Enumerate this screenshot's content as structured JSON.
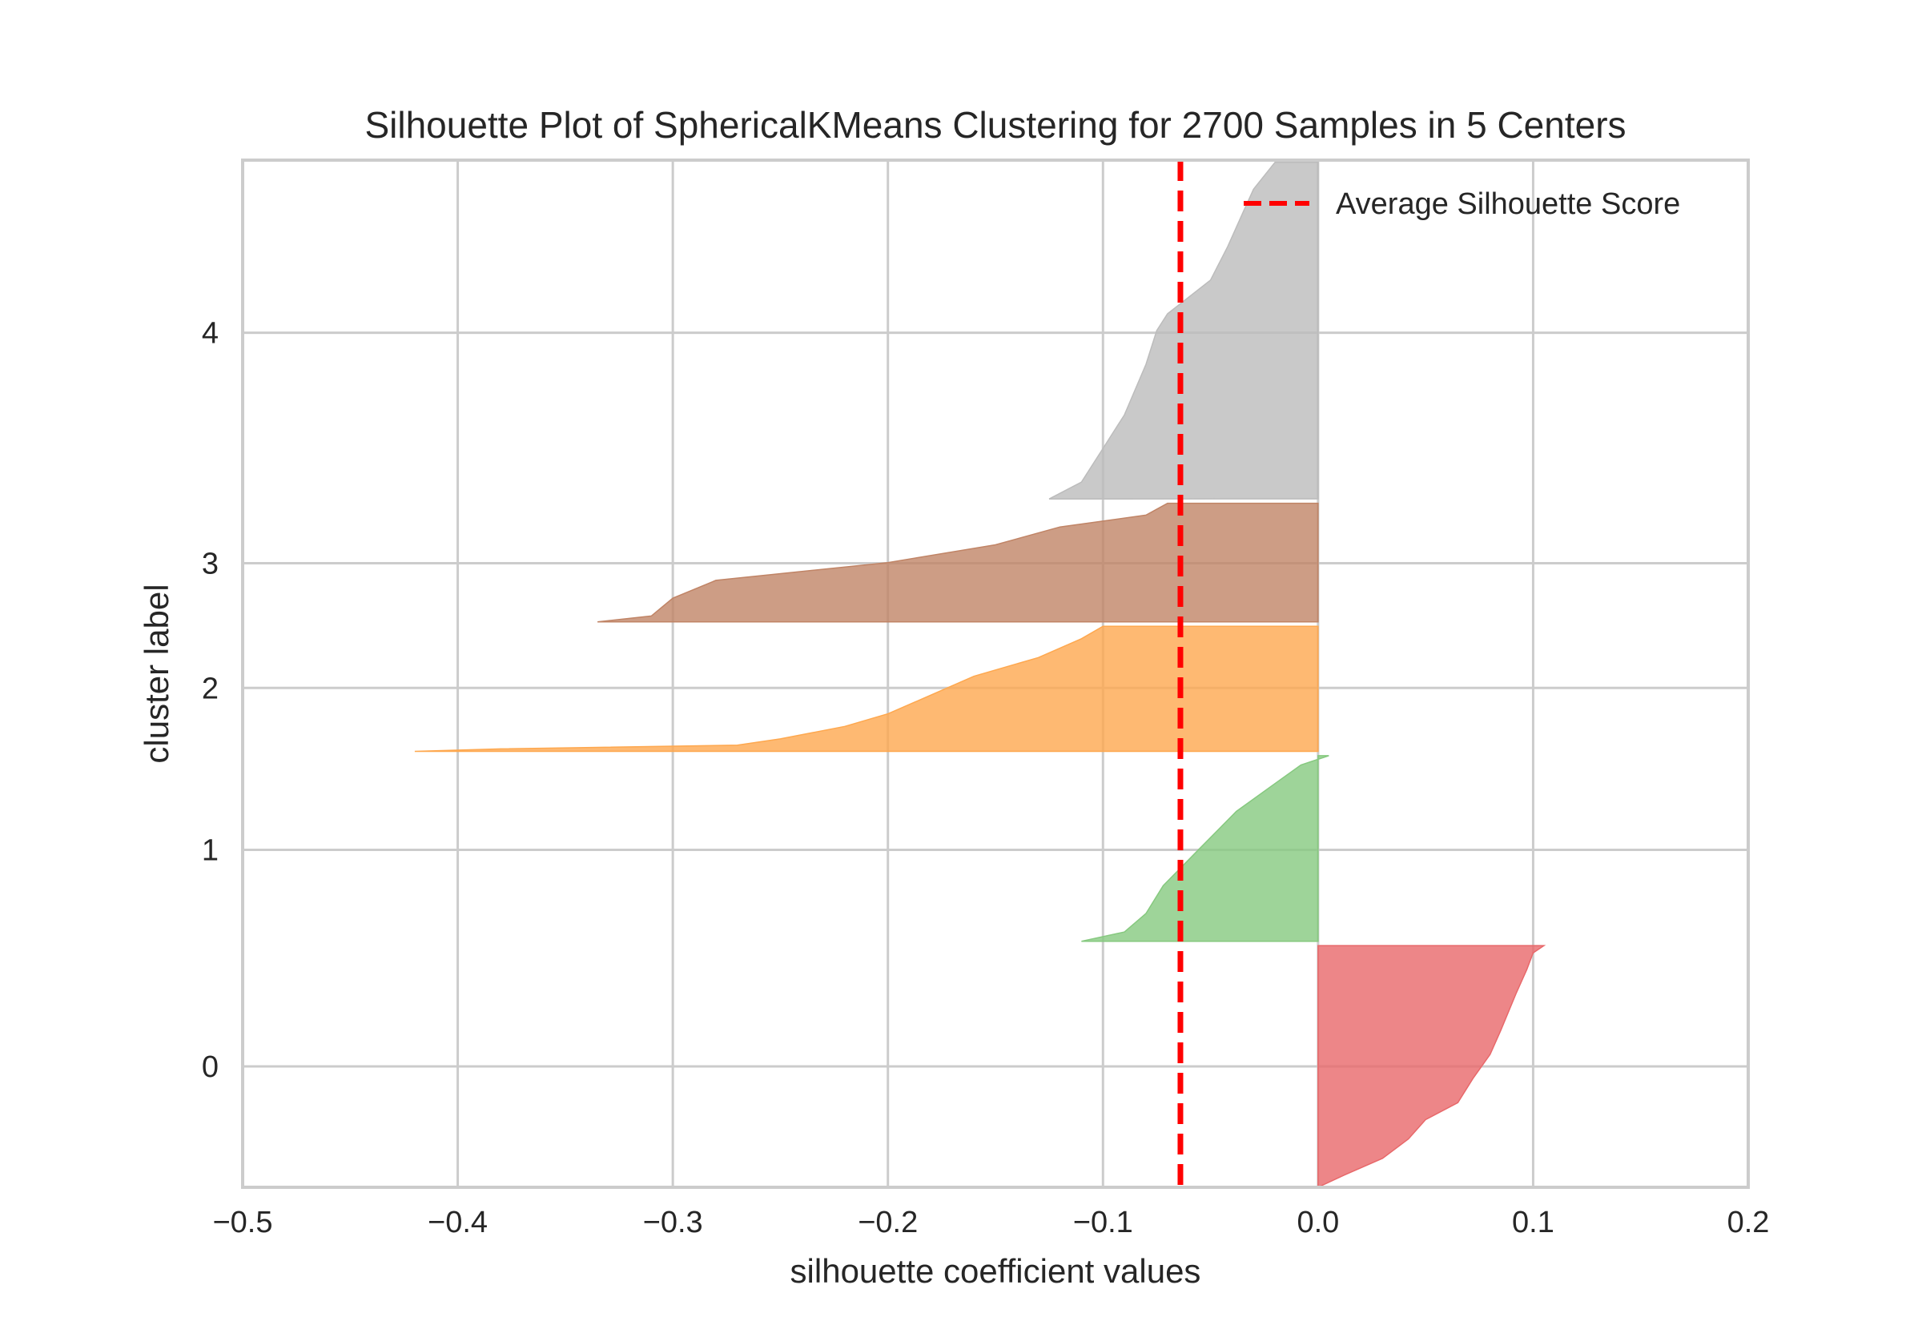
{
  "chart_data": {
    "type": "area",
    "title": "Silhouette Plot of SphericalKMeans Clustering for 2700 Samples in 5 Centers",
    "xlabel": "silhouette coefficient values",
    "ylabel": "cluster label",
    "xlim": [
      -0.5,
      0.2
    ],
    "x_ticks": [
      -0.5,
      -0.4,
      -0.3,
      -0.2,
      -0.1,
      0.0,
      0.1,
      0.2
    ],
    "x_tick_labels": [
      "−0.5",
      "−0.4",
      "−0.3",
      "−0.2",
      "−0.1",
      "0.0",
      "0.1",
      "0.2"
    ],
    "y_ticks": [
      {
        "label": "0",
        "sample_index": 280
      },
      {
        "label": "1",
        "sample_index": 782
      },
      {
        "label": "2",
        "sample_index": 1157
      },
      {
        "label": "3",
        "sample_index": 1446
      },
      {
        "label": "4",
        "sample_index": 1980
      }
    ],
    "ylim": [
      0,
      2380
    ],
    "grid": true,
    "legend_position": "top-right",
    "average_silhouette_score": -0.064,
    "average_label": "Average Silhouette Score",
    "average_color": "#ff0000",
    "clusters": [
      {
        "label": "0",
        "color": "#e8686a",
        "start": 0,
        "end": 560,
        "profile": [
          [
            0,
            0.0
          ],
          [
            0.05,
            0.012
          ],
          [
            0.12,
            0.03
          ],
          [
            0.2,
            0.042
          ],
          [
            0.28,
            0.05
          ],
          [
            0.35,
            0.065
          ],
          [
            0.45,
            0.072
          ],
          [
            0.55,
            0.08
          ],
          [
            0.65,
            0.085
          ],
          [
            0.8,
            0.092
          ],
          [
            0.9,
            0.097
          ],
          [
            0.97,
            0.1
          ],
          [
            1.0,
            0.105
          ]
        ]
      },
      {
        "label": "1",
        "color": "#86c97f",
        "start": 570,
        "end": 1000,
        "profile": [
          [
            0,
            -0.11
          ],
          [
            0.05,
            -0.09
          ],
          [
            0.15,
            -0.08
          ],
          [
            0.3,
            -0.072
          ],
          [
            0.5,
            -0.055
          ],
          [
            0.7,
            -0.038
          ],
          [
            0.85,
            -0.02
          ],
          [
            0.95,
            -0.008
          ],
          [
            1.0,
            0.005
          ]
        ]
      },
      {
        "label": "2",
        "color": "#fea84f",
        "start": 1010,
        "end": 1300,
        "profile": [
          [
            0,
            -0.42
          ],
          [
            0.02,
            -0.38
          ],
          [
            0.05,
            -0.27
          ],
          [
            0.1,
            -0.25
          ],
          [
            0.2,
            -0.22
          ],
          [
            0.3,
            -0.2
          ],
          [
            0.45,
            -0.18
          ],
          [
            0.6,
            -0.16
          ],
          [
            0.75,
            -0.13
          ],
          [
            0.9,
            -0.11
          ],
          [
            1.0,
            -0.1
          ]
        ]
      },
      {
        "label": "3",
        "color": "#c08466",
        "start": 1310,
        "end": 1585,
        "profile": [
          [
            0,
            -0.335
          ],
          [
            0.05,
            -0.31
          ],
          [
            0.2,
            -0.3
          ],
          [
            0.35,
            -0.28
          ],
          [
            0.5,
            -0.2
          ],
          [
            0.65,
            -0.15
          ],
          [
            0.8,
            -0.12
          ],
          [
            0.9,
            -0.08
          ],
          [
            1.0,
            -0.07
          ]
        ]
      },
      {
        "label": "4",
        "color": "#bcbcbc",
        "start": 1595,
        "end": 2375,
        "profile": [
          [
            0,
            -0.125
          ],
          [
            0.05,
            -0.11
          ],
          [
            0.15,
            -0.1
          ],
          [
            0.25,
            -0.09
          ],
          [
            0.4,
            -0.08
          ],
          [
            0.5,
            -0.075
          ],
          [
            0.55,
            -0.07
          ],
          [
            0.65,
            -0.05
          ],
          [
            0.75,
            -0.042
          ],
          [
            0.85,
            -0.035
          ],
          [
            0.92,
            -0.03
          ],
          [
            1.0,
            -0.02
          ]
        ]
      }
    ]
  }
}
